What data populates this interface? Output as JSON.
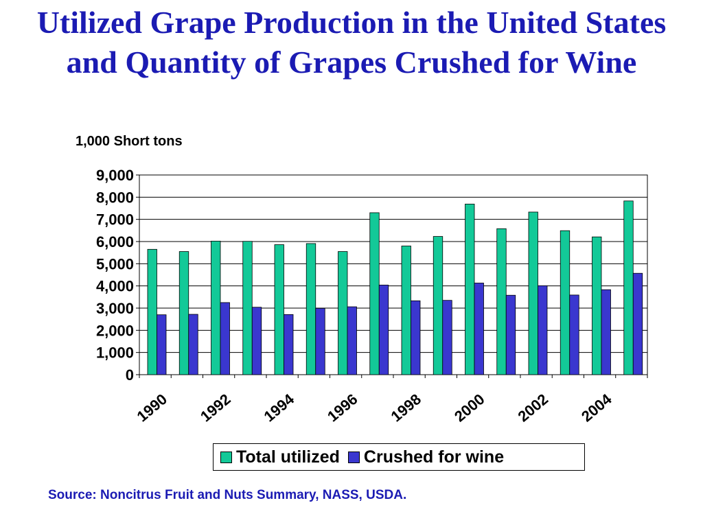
{
  "title": "Utilized Grape Production in the United States and Quantity of Grapes Crushed for Wine",
  "units_label": "1,000 Short tons",
  "source": "Source: Noncitrus Fruit and Nuts Summary, NASS, USDA.",
  "colors": {
    "title": "#1b1bb3",
    "total": "#13c998",
    "crushed": "#3a37cf"
  },
  "chart_data": {
    "type": "bar",
    "categories": [
      "1990",
      "1991",
      "1992",
      "1993",
      "1994",
      "1995",
      "1996",
      "1997",
      "1998",
      "1999",
      "2000",
      "2001",
      "2002",
      "2003",
      "2004",
      "2005"
    ],
    "tick_labels": [
      "1990",
      "1992",
      "1994",
      "1996",
      "1998",
      "2000",
      "2002",
      "2004"
    ],
    "y_tick_labels": [
      "0",
      "1,000",
      "2,000",
      "3,000",
      "4,000",
      "5,000",
      "6,000",
      "7,000",
      "8,000",
      "9,000"
    ],
    "series": [
      {
        "name": "Total utilized",
        "values": [
          5650,
          5550,
          6020,
          6010,
          5860,
          5910,
          5550,
          7300,
          5800,
          6230,
          7690,
          6580,
          7330,
          6490,
          6210,
          7830
        ]
      },
      {
        "name": "Crushed for wine",
        "values": [
          2700,
          2720,
          3250,
          3040,
          2710,
          2990,
          3060,
          4040,
          3330,
          3350,
          4130,
          3580,
          4010,
          3590,
          3830,
          4570
        ]
      }
    ],
    "ylabel": "1,000 Short tons",
    "ylim": [
      0,
      9000
    ],
    "legend": "bottom",
    "grid": true
  }
}
